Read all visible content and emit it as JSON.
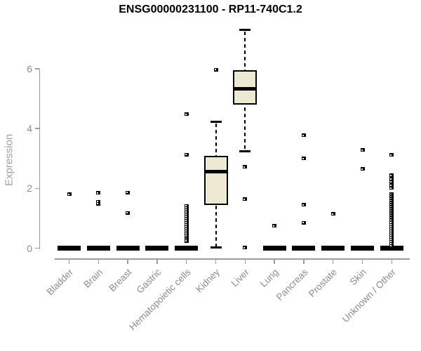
{
  "chart_data": {
    "type": "boxplot",
    "title": "ENSG00000231100 - RP11-740C1.2",
    "ylabel": "Expression",
    "xlabel": "",
    "yticks": [
      0,
      2,
      4,
      6
    ],
    "ylim": [
      0,
      7.5
    ],
    "grid": false,
    "legend": "none",
    "box_fill_color": "#ede8d0",
    "axis_color": "#9b9b9b",
    "tick_label_color": "#8c8c8c",
    "categories": [
      {
        "label": "Bladder",
        "flat": true,
        "median": 0,
        "outliers": [
          1.8
        ]
      },
      {
        "label": "Brain",
        "flat": true,
        "median": 0,
        "outliers": [
          1.85,
          1.55,
          1.48
        ]
      },
      {
        "label": "Breast",
        "flat": true,
        "median": 0,
        "outliers": [
          1.86,
          1.18
        ]
      },
      {
        "label": "Gastric",
        "flat": true,
        "median": 0,
        "outliers": []
      },
      {
        "label": "Hematopoietic cells",
        "flat": true,
        "median": 0,
        "outliers": [
          4.48,
          3.13,
          1.41,
          1.34,
          1.27,
          1.2,
          1.13,
          1.06,
          0.99,
          0.92,
          0.85,
          0.78,
          0.71,
          0.64,
          0.57,
          0.5,
          0.43,
          0.36,
          0.3,
          0.24
        ]
      },
      {
        "label": "Kidney",
        "flat": false,
        "whisker_low": 0.02,
        "q1": 1.45,
        "median": 2.55,
        "q3": 3.08,
        "whisker_high": 4.22,
        "outliers": [
          5.97
        ]
      },
      {
        "label": "Liver",
        "flat": false,
        "whisker_low": 3.24,
        "q1": 4.8,
        "median": 5.33,
        "q3": 5.94,
        "whisker_high": 7.3,
        "outliers": [
          2.72,
          1.64,
          0.02
        ]
      },
      {
        "label": "Lung",
        "flat": true,
        "median": 0,
        "outliers": [
          0.74
        ]
      },
      {
        "label": "Pancreas",
        "flat": true,
        "median": 0,
        "outliers": [
          3.77,
          3.0,
          1.45,
          0.85
        ]
      },
      {
        "label": "Prostate",
        "flat": true,
        "median": 0,
        "outliers": [
          1.15
        ]
      },
      {
        "label": "Skin",
        "flat": true,
        "median": 0,
        "outliers": [
          3.28,
          2.65
        ]
      },
      {
        "label": "Unknown / Other",
        "flat": true,
        "median": 0,
        "outliers": [
          3.12,
          2.43,
          2.32,
          2.21,
          2.1,
          2.01,
          1.8,
          1.73,
          1.66,
          1.59,
          1.52,
          1.45,
          1.38,
          1.31,
          1.24,
          1.17,
          1.1,
          1.03,
          0.96,
          0.9,
          0.85,
          0.78,
          0.71,
          0.64,
          0.57,
          0.5,
          0.43,
          0.36,
          0.29,
          0.22,
          0.15,
          0.08
        ]
      }
    ]
  }
}
